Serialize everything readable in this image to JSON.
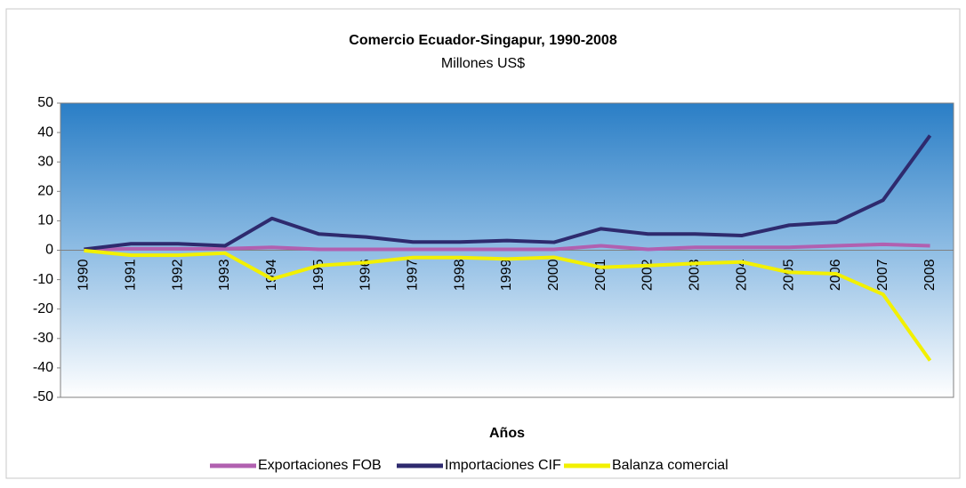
{
  "chart_data": {
    "type": "line",
    "title": "Comercio Ecuador-Singapur, 1990-2008",
    "subtitle": "Millones US$",
    "x_label": "Años",
    "categories": [
      "1990",
      "1991",
      "1992",
      "1993",
      "1994",
      "1995",
      "1996",
      "1997",
      "1998",
      "1999",
      "2000",
      "2001",
      "2002",
      "2003",
      "2004",
      "2005",
      "2006",
      "2007",
      "2008"
    ],
    "series": [
      {
        "name": "Exportaciones FOB",
        "color": "#b160b0",
        "values": [
          0.2,
          0.5,
          0.5,
          0.5,
          1,
          0.3,
          0.3,
          0.3,
          0.3,
          0.3,
          0.3,
          1.5,
          0.3,
          1,
          1,
          1,
          1.5,
          2,
          1.5
        ]
      },
      {
        "name": "Importaciones CIF",
        "color": "#2e2a6e",
        "values": [
          0.3,
          2.2,
          2.2,
          1.5,
          10.8,
          5.5,
          4.5,
          2.8,
          2.8,
          3.3,
          2.7,
          7.3,
          5.5,
          5.5,
          5,
          8.5,
          9.5,
          17,
          39
        ]
      },
      {
        "name": "Balanza comercial",
        "color": "#f2f000",
        "values": [
          -0.1,
          -1.7,
          -1.7,
          -1,
          -9.8,
          -5.2,
          -4.2,
          -2.5,
          -2.5,
          -3,
          -2.4,
          -5.8,
          -5.2,
          -4.5,
          -4,
          -7.5,
          -8,
          -15,
          -37.5
        ]
      }
    ],
    "ylim": [
      -50,
      50
    ],
    "yticks": [
      -50,
      -40,
      -30,
      -20,
      -10,
      0,
      10,
      20,
      30,
      40,
      50
    ],
    "grid": false
  }
}
